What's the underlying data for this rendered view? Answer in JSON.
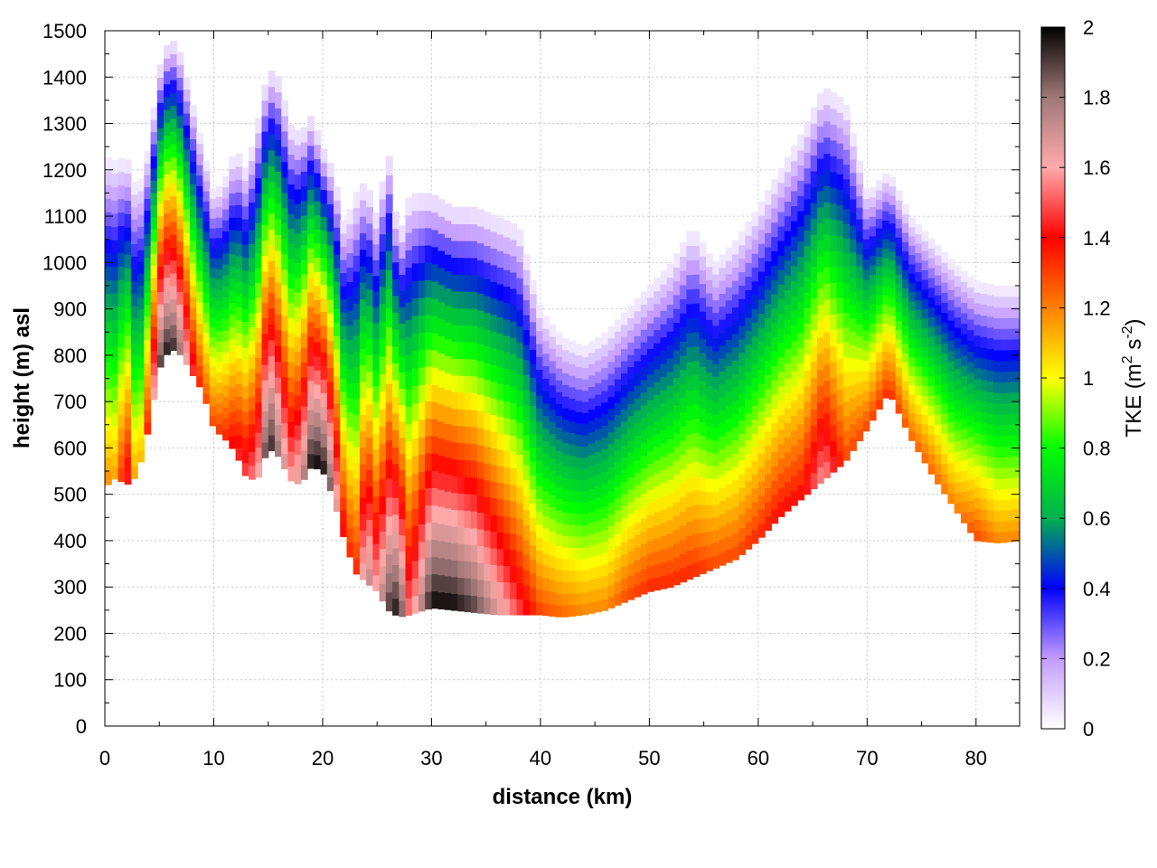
{
  "chart_data": {
    "type": "heatmap",
    "title": "",
    "xlabel": "distance (km)",
    "ylabel": "height (m) asl",
    "xlim": [
      0,
      84
    ],
    "ylim": [
      0,
      1500
    ],
    "x_ticks": [
      0,
      10,
      20,
      30,
      40,
      50,
      60,
      70,
      80
    ],
    "y_ticks": [
      0,
      100,
      200,
      300,
      400,
      500,
      600,
      700,
      800,
      900,
      1000,
      1100,
      1200,
      1300,
      1400,
      1500
    ],
    "grid": true,
    "colorbar": {
      "label_main": "TKE (m",
      "label_sup1": "2",
      "label_mid": " s",
      "label_sup2": "-2",
      "label_end": ")",
      "range": [
        0,
        2
      ],
      "ticks": [
        "0",
        "0.2",
        "0.4",
        "0.6",
        "0.8",
        "1",
        "1.2",
        "1.4",
        "1.6",
        "1.8",
        "2"
      ],
      "colors": [
        "#ffffff",
        "#c39cff",
        "#0000ff",
        "#00b050",
        "#00ff00",
        "#ffff00",
        "#ff8000",
        "#ff0000",
        "#ffaaaa",
        "#a07878",
        "#000000"
      ]
    },
    "terrain": {
      "x": [
        0,
        1,
        2,
        3,
        4,
        5,
        6,
        7,
        8,
        9,
        10,
        11,
        12,
        13,
        14,
        15,
        16,
        17,
        18,
        19,
        20,
        21,
        22,
        23,
        24,
        25,
        26,
        27,
        28,
        30,
        32,
        34,
        36,
        38,
        40,
        42,
        44,
        46,
        48,
        50,
        52,
        54,
        56,
        58,
        60,
        62,
        64,
        66,
        68,
        70,
        72,
        74,
        76,
        78,
        80,
        82,
        84
      ],
      "height": [
        515,
        535,
        520,
        540,
        640,
        770,
        815,
        800,
        760,
        720,
        640,
        620,
        590,
        535,
        530,
        600,
        580,
        530,
        520,
        560,
        550,
        490,
        400,
        330,
        310,
        290,
        250,
        235,
        240,
        255,
        250,
        245,
        240,
        240,
        240,
        235,
        240,
        250,
        270,
        290,
        300,
        320,
        340,
        360,
        400,
        450,
        490,
        530,
        570,
        640,
        720,
        620,
        540,
        470,
        400,
        395,
        400
      ]
    },
    "top": {
      "x": [
        0,
        1,
        2,
        3,
        4,
        5,
        6,
        7,
        8,
        9,
        10,
        11,
        12,
        13,
        14,
        15,
        16,
        17,
        18,
        19,
        20,
        21,
        22,
        23,
        24,
        25,
        26,
        27,
        28,
        30,
        32,
        34,
        36,
        38,
        40,
        42,
        44,
        46,
        48,
        50,
        52,
        54,
        56,
        58,
        60,
        62,
        64,
        66,
        68,
        70,
        72,
        74,
        76,
        78,
        80,
        82,
        84
      ],
      "height": [
        1230,
        1220,
        1230,
        1150,
        1250,
        1420,
        1490,
        1450,
        1350,
        1250,
        1150,
        1180,
        1250,
        1200,
        1300,
        1420,
        1400,
        1300,
        1280,
        1320,
        1250,
        1200,
        1080,
        1150,
        1180,
        1100,
        1250,
        1050,
        1150,
        1150,
        1120,
        1120,
        1100,
        1080,
        900,
        840,
        820,
        850,
        900,
        950,
        1000,
        1080,
        1000,
        1050,
        1120,
        1200,
        1280,
        1380,
        1350,
        1150,
        1200,
        1100,
        1050,
        1000,
        960,
        950,
        950
      ]
    },
    "intensity": {
      "x": [
        0,
        1,
        2,
        3,
        4,
        5,
        6,
        7,
        8,
        9,
        10,
        11,
        12,
        13,
        14,
        15,
        16,
        17,
        18,
        19,
        20,
        21,
        22,
        23,
        24,
        25,
        26,
        27,
        28,
        30,
        32,
        34,
        36,
        38,
        40,
        42,
        44,
        46,
        48,
        50,
        52,
        54,
        56,
        58,
        60,
        62,
        64,
        66,
        68,
        70,
        72,
        74,
        76,
        78,
        80,
        82,
        84
      ],
      "tke": [
        1.2,
        1.15,
        1.5,
        1.0,
        1.4,
        1.9,
        2.0,
        1.8,
        1.5,
        1.3,
        1.3,
        1.35,
        1.45,
        1.5,
        1.6,
        2.0,
        1.8,
        1.6,
        1.7,
        2.0,
        2.0,
        1.8,
        1.4,
        1.3,
        1.8,
        1.6,
        1.9,
        2.0,
        1.5,
        2.0,
        2.0,
        1.9,
        1.7,
        1.5,
        1.3,
        1.25,
        1.2,
        1.2,
        1.3,
        1.35,
        1.35,
        1.35,
        1.3,
        1.3,
        1.35,
        1.4,
        1.4,
        1.6,
        1.3,
        1.3,
        1.35,
        1.25,
        1.25,
        1.2,
        1.3,
        1.2,
        1.2
      ]
    }
  }
}
